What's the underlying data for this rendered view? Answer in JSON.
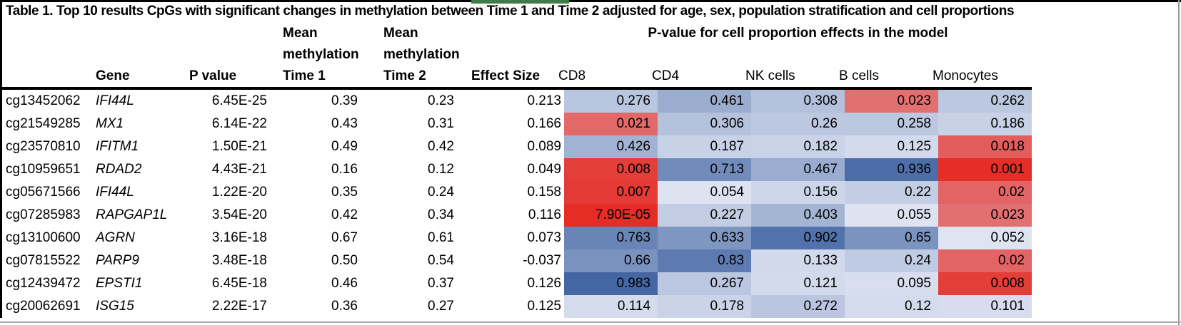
{
  "title": "Table 1. Top 10 results CpGs with significant changes in methylation between Time 1 and Time 2 adjusted for age, sex, population stratification and cell proportions",
  "header": {
    "gene": "Gene",
    "p_value": "P value",
    "mean_t1_lines": [
      "Mean",
      "methylation",
      "Time 1"
    ],
    "mean_t2_lines": [
      "Mean",
      "methylation",
      "Time 2"
    ],
    "effect_size": "Effect Size",
    "cell_group": "P-value for cell proportion effects in the model",
    "cell_cols": [
      "CD8",
      "CD4",
      "NK cells",
      "B cells",
      "Monocytes"
    ]
  },
  "chart_data": {
    "type": "heatmap",
    "title": "Table 1. Top 10 results CpGs with significant changes in methylation between Time 1 and Time 2 adjusted for age, sex, population stratification and cell proportions",
    "columns": [
      "CpG",
      "Gene",
      "P value",
      "Mean methylation Time 1",
      "Mean methylation Time 2",
      "Effect Size",
      "CD8",
      "CD4",
      "NK cells",
      "B cells",
      "Monocytes"
    ],
    "heat_columns": [
      "CD8",
      "CD4",
      "NK cells",
      "B cells",
      "Monocytes"
    ],
    "color_scale": {
      "min": 7.9e-05,
      "mid": 0.05,
      "max": 0.983,
      "min_color": "#e52d26",
      "mid_color": "#dfe4f2",
      "max_color": "#4467a3",
      "note": "red = low p-value, blue = high p-value"
    },
    "rows": [
      {
        "cpg": "cg13452062",
        "gene": "IFI44L",
        "p": "6.45E-25",
        "t1": "0.39",
        "t2": "0.23",
        "effect": "0.213",
        "cells": [
          "0.276",
          "0.461",
          "0.308",
          "0.023",
          "0.262"
        ]
      },
      {
        "cpg": "cg21549285",
        "gene": "MX1",
        "p": "6.14E-22",
        "t1": "0.43",
        "t2": "0.31",
        "effect": "0.166",
        "cells": [
          "0.021",
          "0.306",
          "0.26",
          "0.258",
          "0.186"
        ]
      },
      {
        "cpg": "cg23570810",
        "gene": "IFITM1",
        "p": "1.50E-21",
        "t1": "0.49",
        "t2": "0.42",
        "effect": "0.089",
        "cells": [
          "0.426",
          "0.187",
          "0.182",
          "0.125",
          "0.018"
        ]
      },
      {
        "cpg": "cg10959651",
        "gene": "RDAD2",
        "p": "4.43E-21",
        "t1": "0.16",
        "t2": "0.12",
        "effect": "0.049",
        "cells": [
          "0.008",
          "0.713",
          "0.467",
          "0.936",
          "0.001"
        ]
      },
      {
        "cpg": "cg05671566",
        "gene": "IFI44L",
        "p": "1.22E-20",
        "t1": "0.35",
        "t2": "0.24",
        "effect": "0.158",
        "cells": [
          "0.007",
          "0.054",
          "0.156",
          "0.22",
          "0.02"
        ]
      },
      {
        "cpg": "cg07285983",
        "gene": "RAPGAP1L",
        "p": "3.54E-20",
        "t1": "0.42",
        "t2": "0.34",
        "effect": "0.116",
        "cells": [
          "7.90E-05",
          "0.227",
          "0.403",
          "0.055",
          "0.023"
        ]
      },
      {
        "cpg": "cg13100600",
        "gene": "AGRN",
        "p": "3.16E-18",
        "t1": "0.67",
        "t2": "0.61",
        "effect": "0.073",
        "cells": [
          "0.763",
          "0.633",
          "0.902",
          "0.65",
          "0.052"
        ]
      },
      {
        "cpg": "cg07815522",
        "gene": "PARP9",
        "p": "3.48E-18",
        "t1": "0.50",
        "t2": "0.54",
        "effect": "-0.037",
        "cells": [
          "0.66",
          "0.83",
          "0.133",
          "0.24",
          "0.02"
        ]
      },
      {
        "cpg": "cg12439472",
        "gene": "EPSTI1",
        "p": "6.45E-18",
        "t1": "0.46",
        "t2": "0.37",
        "effect": "0.126",
        "cells": [
          "0.983",
          "0.267",
          "0.121",
          "0.095",
          "0.008"
        ]
      },
      {
        "cpg": "cg20062691",
        "gene": "ISG15",
        "p": "2.22E-17",
        "t1": "0.36",
        "t2": "0.27",
        "effect": "0.125",
        "cells": [
          "0.114",
          "0.178",
          "0.272",
          "0.12",
          "0.101"
        ]
      }
    ]
  }
}
